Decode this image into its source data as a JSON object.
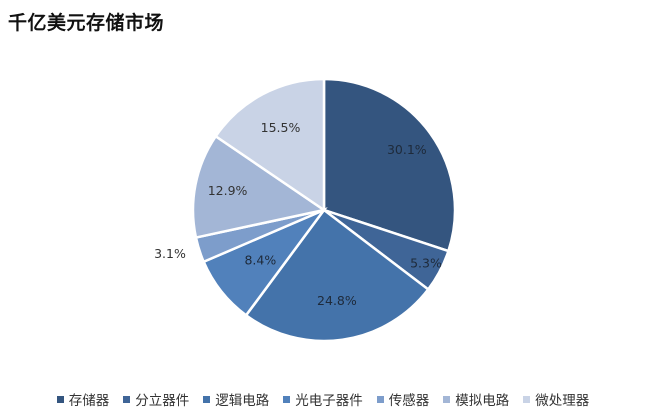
{
  "chart_data": {
    "type": "pie",
    "title": "千亿美元存储市场",
    "legend_position": "bottom",
    "labels": [
      "存储器",
      "分立器件",
      "逻辑电路",
      "光电子器件",
      "传感器",
      "模拟电路",
      "微处理器"
    ],
    "values": [
      30.1,
      5.3,
      24.8,
      8.4,
      3.1,
      12.9,
      15.5
    ],
    "value_labels": [
      "30.1%",
      "5.3%",
      "24.8%",
      "8.4%",
      "3.1%",
      "12.9%",
      "15.5%"
    ],
    "colors": [
      "#34557f",
      "#3f6597",
      "#4473aa",
      "#5181bb",
      "#7d9dcb",
      "#a3b6d6",
      "#c9d3e6"
    ],
    "label_colors": [
      "#1e2a3a",
      "#1e2a3a",
      "#1e2a3a",
      "#1e2a3a",
      "#333333",
      "#333333",
      "#333333"
    ]
  }
}
